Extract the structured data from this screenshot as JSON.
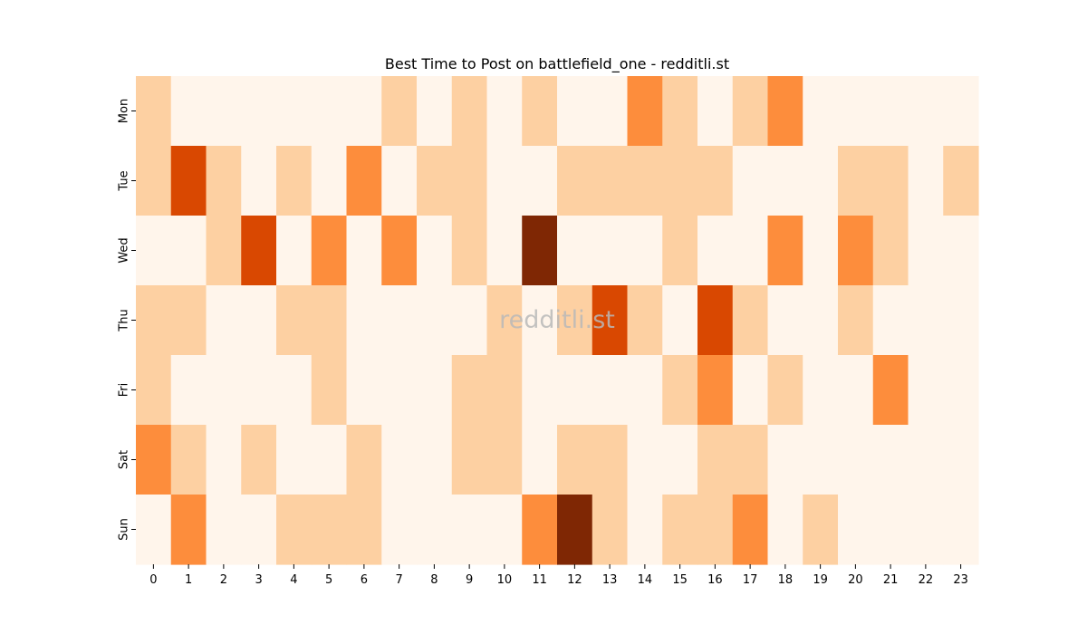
{
  "chart_data": {
    "type": "heatmap",
    "title": "Best Time to Post on battlefield_one - redditli.st",
    "watermark": "redditli.st",
    "x_categories": [
      "0",
      "1",
      "2",
      "3",
      "4",
      "5",
      "6",
      "7",
      "8",
      "9",
      "10",
      "11",
      "12",
      "13",
      "14",
      "15",
      "16",
      "17",
      "18",
      "19",
      "20",
      "21",
      "22",
      "23"
    ],
    "y_categories": [
      "Mon",
      "Tue",
      "Wed",
      "Thu",
      "Fri",
      "Sat",
      "Sun"
    ],
    "values": [
      [
        1,
        0,
        0,
        0,
        0,
        0,
        0,
        1,
        0,
        1,
        0,
        1,
        0,
        0,
        2,
        1,
        0,
        1,
        2,
        0,
        0,
        0,
        0,
        0
      ],
      [
        1,
        3,
        1,
        0,
        1,
        0,
        2,
        0,
        1,
        1,
        0,
        0,
        1,
        1,
        1,
        1,
        1,
        0,
        0,
        0,
        1,
        1,
        0,
        1
      ],
      [
        0,
        0,
        1,
        3,
        0,
        2,
        0,
        2,
        0,
        1,
        0,
        4,
        0,
        0,
        0,
        1,
        0,
        0,
        2,
        0,
        2,
        1,
        0,
        0
      ],
      [
        1,
        1,
        0,
        0,
        1,
        1,
        0,
        0,
        0,
        0,
        1,
        0,
        1,
        3,
        1,
        0,
        3,
        1,
        0,
        0,
        1,
        0,
        0,
        0
      ],
      [
        1,
        0,
        0,
        0,
        0,
        1,
        0,
        0,
        0,
        1,
        1,
        0,
        0,
        0,
        0,
        1,
        2,
        0,
        1,
        0,
        0,
        2,
        0,
        0
      ],
      [
        2,
        1,
        0,
        1,
        0,
        0,
        1,
        0,
        0,
        1,
        1,
        0,
        1,
        1,
        0,
        0,
        1,
        1,
        0,
        0,
        0,
        0,
        0,
        0
      ],
      [
        0,
        2,
        0,
        0,
        1,
        1,
        1,
        0,
        0,
        0,
        0,
        2,
        4,
        1,
        0,
        1,
        1,
        2,
        0,
        1,
        0,
        0,
        0,
        0
      ]
    ],
    "color_levels": [
      "#fff5eb",
      "#fdd0a2",
      "#fd8d3c",
      "#d94801",
      "#7f2704"
    ],
    "colormap": "Oranges",
    "colorbar": false,
    "grid": false
  }
}
